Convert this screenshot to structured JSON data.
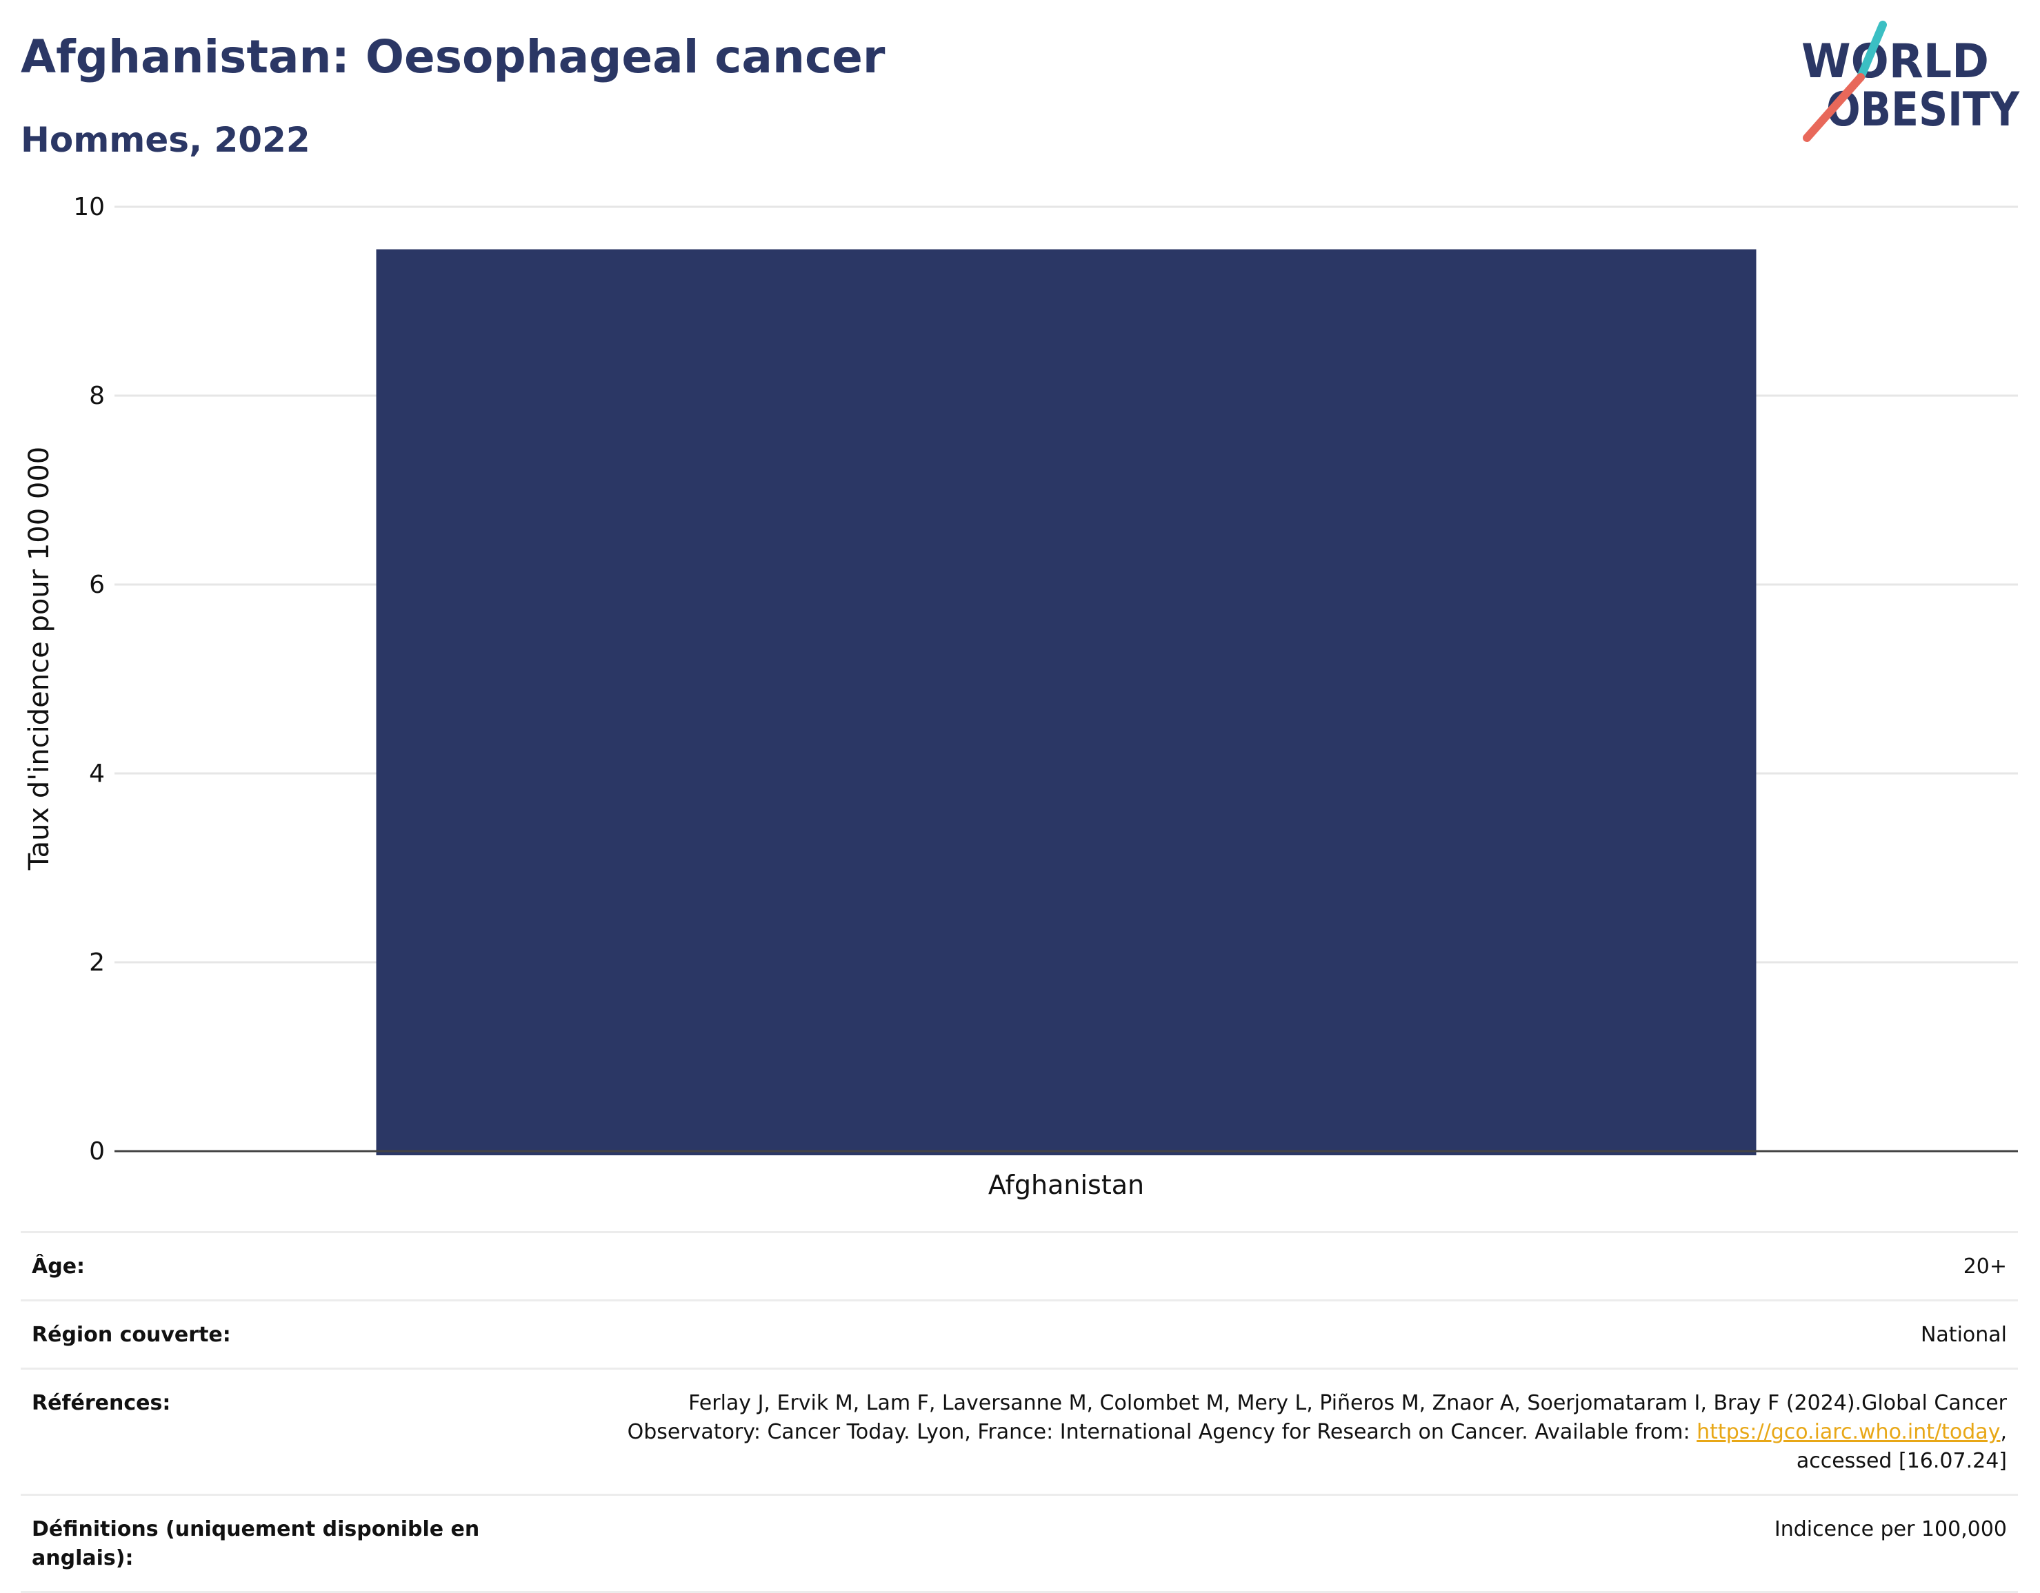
{
  "header": {
    "title": "Afghanistan: Oesophageal cancer",
    "subtitle": "Hommes, 2022"
  },
  "logo": {
    "line1": "WORLD",
    "line2": "OBESITY",
    "text_color": "#2b3765",
    "slash_top_color": "#3bbfc3",
    "slash_bottom_color": "#e8685a"
  },
  "chart_data": {
    "type": "bar",
    "categories": [
      "Afghanistan"
    ],
    "values": [
      9.55
    ],
    "ylabel": "Taux d'incidence pour 100 000",
    "ylim": [
      0,
      10
    ],
    "yticks": [
      0,
      2,
      4,
      6,
      8,
      10
    ],
    "grid": true,
    "bar_color": "#2b3765"
  },
  "meta": {
    "rows": [
      {
        "label": "Âge:",
        "value": "20+"
      },
      {
        "label": "Région couverte:",
        "value": "National"
      },
      {
        "label": "Références:",
        "value_line1": "Ferlay J, Ervik M, Lam F, Laversanne M, Colombet M, Mery L, Piñeros M, Znaor A, Soerjomataram I, Bray F (2024).Global Cancer",
        "value_line2_prefix": "Observatory: Cancer Today. Lyon, France: International Agency for Research on Cancer. Available from: ",
        "value_link": "https://gco.iarc.who.int/today",
        "value_line2_suffix": ",",
        "value_line3": "accessed [16.07.24]"
      },
      {
        "label": "Définitions (uniquement disponible en anglais):",
        "value": "Indicence per 100,000"
      }
    ]
  }
}
